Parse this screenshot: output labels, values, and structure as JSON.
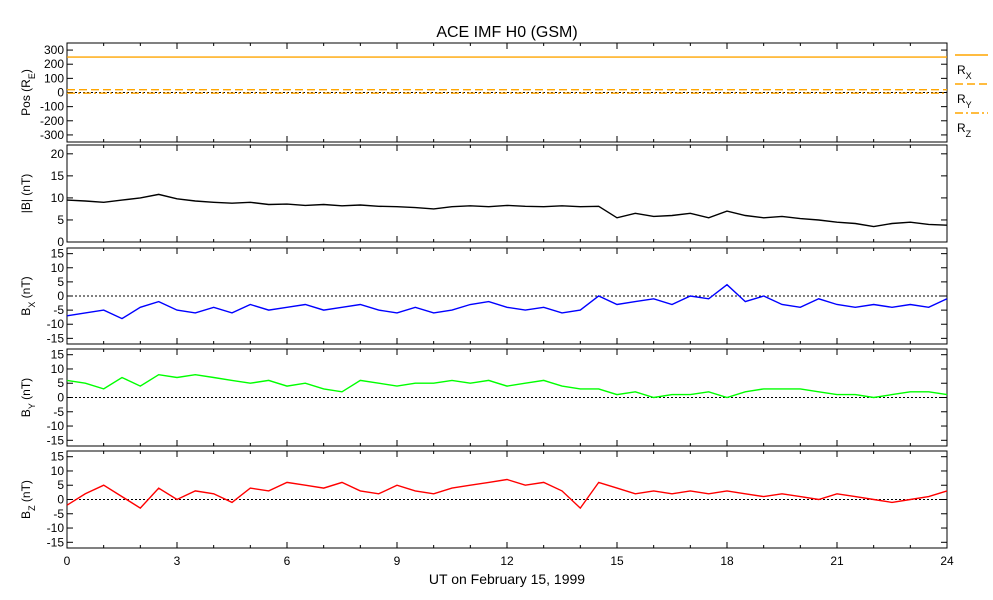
{
  "chart_data": {
    "type": "line",
    "title": "ACE IMF H0 (GSM)",
    "xlabel": "UT on February 15, 1999",
    "xlim": [
      0,
      24
    ],
    "xticks": [
      0,
      3,
      6,
      9,
      12,
      15,
      18,
      21,
      24
    ],
    "xtick_labels": [
      "0",
      "3",
      "6",
      "9",
      "12",
      "15",
      "18",
      "21",
      "24"
    ],
    "panels": [
      {
        "id": "pos",
        "ylabel": "Pos (R",
        "ylabel_sub": "E",
        "ylabel_suffix": ")",
        "ylim": [
          -350,
          350
        ],
        "yticks": [
          -300,
          -200,
          -100,
          0,
          100,
          200,
          300
        ],
        "ytick_labels": [
          "-300",
          "-200",
          "-100",
          "0",
          "100",
          "200",
          "300"
        ],
        "zero_line": true,
        "series": [
          {
            "name": "R",
            "sub": "X",
            "color": "#ffa500",
            "dash": "",
            "x": [
              0,
              24
            ],
            "values": [
              250,
              250
            ]
          },
          {
            "name": "R",
            "sub": "Y",
            "color": "#ffa500",
            "dash": "8,4",
            "x": [
              0,
              24
            ],
            "values": [
              20,
              20
            ]
          },
          {
            "name": "R",
            "sub": "Z",
            "color": "#ffa500",
            "dash": "8,3,2,3",
            "x": [
              0,
              24
            ],
            "values": [
              -5,
              -5
            ]
          }
        ]
      },
      {
        "id": "bmag",
        "ylabel": "|B| (nT)",
        "ylim": [
          0,
          22
        ],
        "yticks": [
          0,
          5,
          10,
          15,
          20
        ],
        "ytick_labels": [
          "0",
          "5",
          "10",
          "15",
          "20"
        ],
        "zero_line": false,
        "series": [
          {
            "color": "#000000",
            "x": [
              0,
              0.5,
              1,
              1.5,
              2,
              2.5,
              3,
              3.5,
              4,
              4.5,
              5,
              5.5,
              6,
              6.5,
              7,
              7.5,
              8,
              8.5,
              9,
              9.5,
              10,
              10.5,
              11,
              11.5,
              12,
              12.5,
              13,
              13.5,
              14,
              14.5,
              15,
              15.5,
              16,
              16.5,
              17,
              17.5,
              18,
              18.5,
              19,
              19.5,
              20,
              20.5,
              21,
              21.5,
              22,
              22.5,
              23,
              23.5,
              24
            ],
            "values": [
              9.5,
              9.3,
              9.0,
              9.5,
              10.0,
              10.8,
              9.8,
              9.3,
              9.0,
              8.8,
              9.0,
              8.5,
              8.6,
              8.3,
              8.5,
              8.2,
              8.4,
              8.1,
              8.0,
              7.8,
              7.5,
              8.0,
              8.2,
              8.0,
              8.3,
              8.1,
              8.0,
              8.2,
              8.0,
              8.1,
              5.5,
              6.5,
              5.8,
              6.0,
              6.5,
              5.5,
              7.0,
              6.0,
              5.5,
              5.8,
              5.3,
              5.0,
              4.5,
              4.2,
              3.5,
              4.2,
              4.5,
              4.0,
              3.8
            ]
          }
        ]
      },
      {
        "id": "bx",
        "ylabel": "B",
        "ylabel_sub": "X",
        "ylabel_suffix": " (nT)",
        "ylim": [
          -17,
          17
        ],
        "yticks": [
          -15,
          -10,
          -5,
          0,
          5,
          10,
          15
        ],
        "ytick_labels": [
          "-15",
          "-10",
          "-5",
          "0",
          "5",
          "10",
          "15"
        ],
        "zero_line": true,
        "series": [
          {
            "color": "#0000ff",
            "x": [
              0,
              0.5,
              1,
              1.5,
              2,
              2.5,
              3,
              3.5,
              4,
              4.5,
              5,
              5.5,
              6,
              6.5,
              7,
              7.5,
              8,
              8.5,
              9,
              9.5,
              10,
              10.5,
              11,
              11.5,
              12,
              12.5,
              13,
              13.5,
              14,
              14.5,
              15,
              15.5,
              16,
              16.5,
              17,
              17.5,
              18,
              18.5,
              19,
              19.5,
              20,
              20.5,
              21,
              21.5,
              22,
              22.5,
              23,
              23.5,
              24
            ],
            "values": [
              -7,
              -6,
              -5,
              -8,
              -4,
              -2,
              -5,
              -6,
              -4,
              -6,
              -3,
              -5,
              -4,
              -3,
              -5,
              -4,
              -3,
              -5,
              -6,
              -4,
              -6,
              -5,
              -3,
              -2,
              -4,
              -5,
              -4,
              -6,
              -5,
              0,
              -3,
              -2,
              -1,
              -3,
              0,
              -1,
              4,
              -2,
              0,
              -3,
              -4,
              -1,
              -3,
              -4,
              -3,
              -4,
              -3,
              -4,
              -1
            ]
          }
        ]
      },
      {
        "id": "by",
        "ylabel": "B",
        "ylabel_sub": "Y",
        "ylabel_suffix": " (nT)",
        "ylim": [
          -17,
          17
        ],
        "yticks": [
          -15,
          -10,
          -5,
          0,
          5,
          10,
          15
        ],
        "ytick_labels": [
          "-15",
          "-10",
          "-5",
          "0",
          "5",
          "10",
          "15"
        ],
        "zero_line": true,
        "series": [
          {
            "color": "#00ff00",
            "x": [
              0,
              0.5,
              1,
              1.5,
              2,
              2.5,
              3,
              3.5,
              4,
              4.5,
              5,
              5.5,
              6,
              6.5,
              7,
              7.5,
              8,
              8.5,
              9,
              9.5,
              10,
              10.5,
              11,
              11.5,
              12,
              12.5,
              13,
              13.5,
              14,
              14.5,
              15,
              15.5,
              16,
              16.5,
              17,
              17.5,
              18,
              18.5,
              19,
              19.5,
              20,
              20.5,
              21,
              21.5,
              22,
              22.5,
              23,
              23.5,
              24
            ],
            "values": [
              6,
              5,
              3,
              7,
              4,
              8,
              7,
              8,
              7,
              6,
              5,
              6,
              4,
              5,
              3,
              2,
              6,
              5,
              4,
              5,
              5,
              6,
              5,
              6,
              4,
              5,
              6,
              4,
              3,
              3,
              1,
              2,
              0,
              1,
              1,
              2,
              0,
              2,
              3,
              3,
              3,
              2,
              1,
              1,
              0,
              1,
              2,
              2,
              1
            ]
          }
        ]
      },
      {
        "id": "bz",
        "ylabel": "B",
        "ylabel_sub": "Z",
        "ylabel_suffix": " (nT)",
        "ylim": [
          -17,
          17
        ],
        "yticks": [
          -15,
          -10,
          -5,
          0,
          5,
          10,
          15
        ],
        "ytick_labels": [
          "-15",
          "-10",
          "-5",
          "0",
          "5",
          "10",
          "15"
        ],
        "zero_line": true,
        "series": [
          {
            "color": "#ff0000",
            "x": [
              0,
              0.5,
              1,
              1.5,
              2,
              2.5,
              3,
              3.5,
              4,
              4.5,
              5,
              5.5,
              6,
              6.5,
              7,
              7.5,
              8,
              8.5,
              9,
              9.5,
              10,
              10.5,
              11,
              11.5,
              12,
              12.5,
              13,
              13.5,
              14,
              14.5,
              15,
              15.5,
              16,
              16.5,
              17,
              17.5,
              18,
              18.5,
              19,
              19.5,
              20,
              20.5,
              21,
              21.5,
              22,
              22.5,
              23,
              23.5,
              24
            ],
            "values": [
              -2,
              2,
              5,
              1,
              -3,
              4,
              0,
              3,
              2,
              -1,
              4,
              3,
              6,
              5,
              4,
              6,
              3,
              2,
              5,
              3,
              2,
              4,
              5,
              6,
              7,
              5,
              6,
              3,
              -3,
              6,
              4,
              2,
              3,
              2,
              3,
              2,
              3,
              2,
              1,
              2,
              1,
              0,
              2,
              1,
              0,
              -1,
              0,
              1,
              3
            ]
          }
        ]
      }
    ]
  }
}
